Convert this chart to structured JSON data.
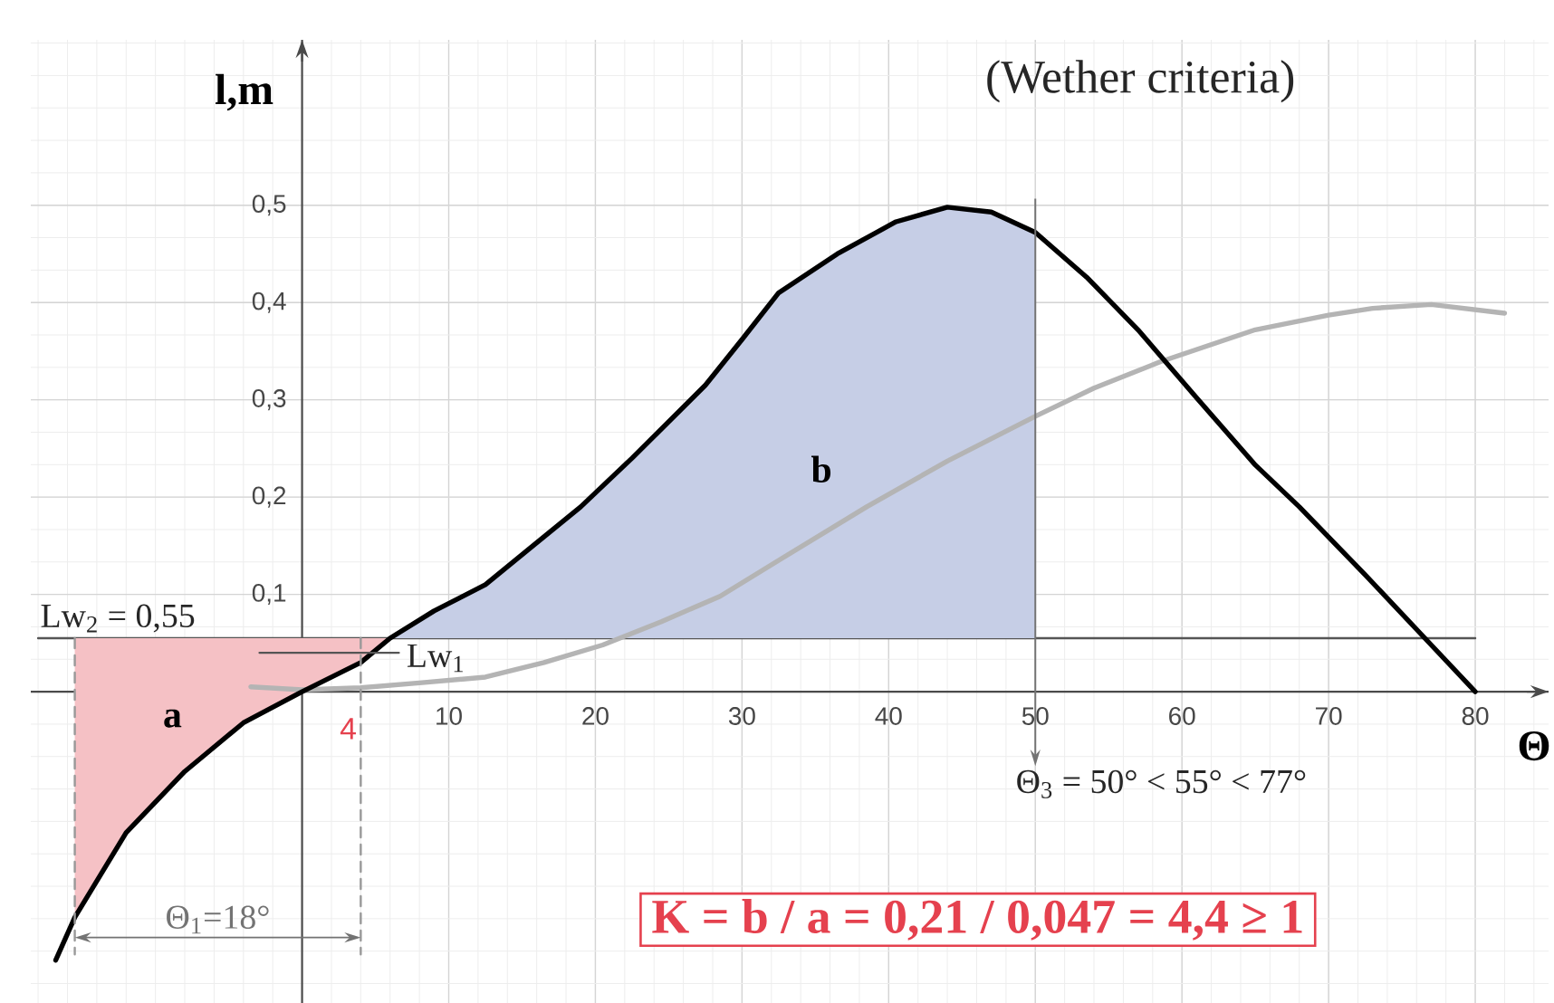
{
  "chart_data": {
    "type": "line",
    "title": "(Wether criteria)",
    "xlabel": "Θ",
    "ylabel": "l,m",
    "xlim": [
      -18.5,
      85
    ],
    "ylim": [
      -0.32,
      0.67
    ],
    "xticks": [
      10,
      20,
      30,
      40,
      50,
      60,
      70,
      80
    ],
    "yticks": [
      {
        "value": 0.1,
        "label": "0,1"
      },
      {
        "value": 0.2,
        "label": "0,2"
      },
      {
        "value": 0.3,
        "label": "0,3"
      },
      {
        "value": 0.4,
        "label": "0,4"
      },
      {
        "value": 0.5,
        "label": "0,5"
      }
    ],
    "grid": true,
    "series": [
      {
        "name": "Lw$_{2}$ = 0,55",
        "color": "#555555",
        "x": [
          -18,
          80
        ],
        "values": [
          0.055,
          0.055
        ]
      },
      {
        "type": "area",
        "name": "a",
        "color": "#f5c1c5",
        "x": [
          -15.5,
          -15.5,
          -12,
          -8,
          -4,
          0,
          4,
          6
        ],
        "values": [
          0.055,
          -0.232,
          -0.145,
          -0.082,
          -0.032,
          0,
          0.03,
          0.055
        ]
      },
      {
        "type": "area",
        "name": "b",
        "color": "#c6cee6",
        "x": [
          6,
          9,
          12.5,
          15.5,
          19,
          22.5,
          27.5,
          30,
          32.5,
          34.5,
          36.5,
          40.5,
          44,
          47,
          50,
          50
        ],
        "values": [
          0.055,
          0.083,
          0.11,
          0.147,
          0.19,
          0.24,
          0.315,
          0.362,
          0.41,
          0.43,
          0.45,
          0.483,
          0.498,
          0.493,
          0.472,
          0.055
        ]
      },
      {
        "color": "#b4b4b4",
        "x": [
          -3.5,
          0,
          4,
          8,
          12.5,
          16.5,
          20.5,
          24.5,
          28.5,
          32.5,
          38.5,
          44,
          50,
          54,
          58.5,
          65,
          70,
          73,
          77,
          82
        ],
        "values": [
          0.005,
          0.002,
          0.004,
          0.009,
          0.015,
          0.03,
          0.048,
          0.072,
          0.098,
          0.135,
          0.19,
          0.237,
          0.283,
          0.312,
          0.339,
          0.372,
          0.387,
          0.394,
          0.398,
          0.389
        ]
      },
      {
        "color": "#000000",
        "x": [
          -16.8,
          -15.5,
          -12,
          -8,
          -4,
          0,
          4,
          6,
          9,
          12.5,
          15.5,
          19,
          22.5,
          27.5,
          30,
          32.5,
          34.5,
          36.5,
          40.5,
          44,
          47,
          50,
          53.5,
          57,
          61,
          65,
          68,
          72.5,
          77,
          80
        ],
        "values": [
          -0.276,
          -0.232,
          -0.145,
          -0.082,
          -0.032,
          0,
          0.03,
          0.055,
          0.083,
          0.11,
          0.147,
          0.19,
          0.24,
          0.315,
          0.362,
          0.41,
          0.43,
          0.45,
          0.483,
          0.498,
          0.493,
          0.472,
          0.426,
          0.372,
          0.302,
          0.233,
          0.19,
          0.12,
          0.048,
          0
        ]
      },
      {
        "name": "Lw$_{1}$",
        "color": "#555555",
        "x": [
          -2.9,
          6.6
        ],
        "values": [
          0.04,
          0.04
        ]
      },
      {
        "color": "#999999",
        "line_style": "dashed",
        "x": [
          -15.5,
          -15.5
        ],
        "values": [
          0.055,
          -0.27
        ]
      },
      {
        "color": "#999999",
        "line_style": "dashed",
        "x": [
          4,
          4
        ],
        "values": [
          0.055,
          -0.27
        ]
      }
    ],
    "annotations": [
      {
        "text": "4",
        "x": 4,
        "y": -0.038
      },
      "Θ$_{1}$=18°",
      "Θ$_{3}$ = 50° < 55° < 77°",
      "K = b / a = 0,21 / 0,047 = 4,4 ≥ 1"
    ]
  }
}
